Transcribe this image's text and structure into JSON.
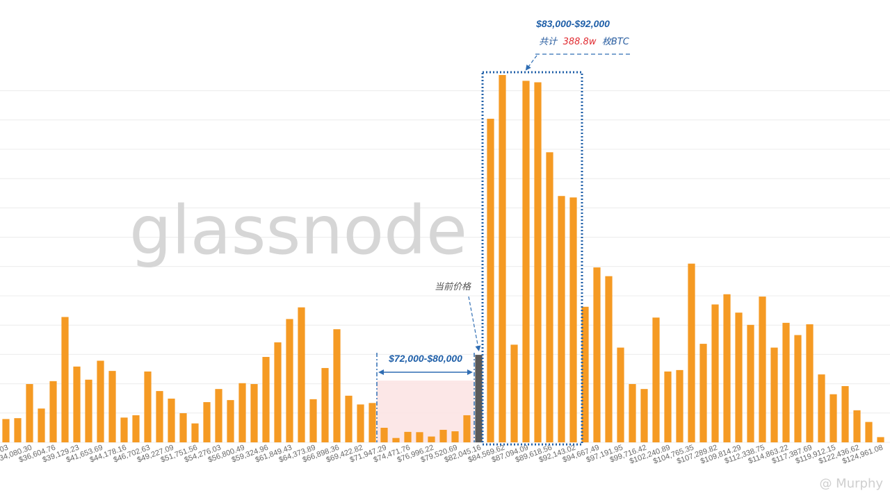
{
  "chart_data": {
    "type": "bar",
    "title": "",
    "xlabel": "",
    "ylabel": "",
    "grid": true,
    "x_tick_labels": [
      "$...03",
      "$34,080.30",
      "$36,604.76",
      "$39,129.23",
      "$41,653.69",
      "$44,178.16",
      "$46,702.63",
      "$49,227.09",
      "$51,751.56",
      "$54,276.03",
      "$56,800.49",
      "$59,324.96",
      "$61,849.43",
      "$64,373.89",
      "$66,898.36",
      "$69,422.82",
      "$71,947.29",
      "$74,471.76",
      "$76,996.22",
      "$79,520.69",
      "$82,045.16",
      "$84,569.62",
      "$87,094.09",
      "$89,618.56",
      "$92,143.02",
      "$94,667.49",
      "$97,191.95",
      "$99,716.42",
      "$102,240.89",
      "$104,765.35",
      "$107,289.82",
      "$109,814.29",
      "$112,338.75",
      "$114,863.22",
      "$117,387.69",
      "$119,912.15",
      "$122,436.62",
      "$124,961.08"
    ],
    "values": [
      8,
      8.3,
      20,
      11.6,
      21,
      43,
      26,
      21.5,
      28,
      24.5,
      8.5,
      9.3,
      24.3,
      17.6,
      15,
      10,
      6.5,
      13.8,
      18.3,
      14.5,
      20.3,
      20,
      29.3,
      34.3,
      42.3,
      46.3,
      14.8,
      25.5,
      38.8,
      16,
      13,
      13.5,
      5,
      1.5,
      3.6,
      3.5,
      2,
      4.3,
      3.8,
      9.3,
      30,
      111,
      126,
      33.5,
      124,
      123.5,
      99.5,
      84.5,
      84,
      46.5,
      60,
      57,
      32.5,
      20,
      18.3,
      42.8,
      24.3,
      24.8,
      61.3,
      33.8,
      47.3,
      50.8,
      44.5,
      40.3,
      50,
      32.5,
      41,
      36.8,
      40.5,
      23.3,
      16.5,
      19.3,
      11,
      7,
      1.8
    ],
    "ylim": [
      0,
      145
    ],
    "current_price_bar_index": 40,
    "watermark": "glassnode",
    "annotations": {
      "range_low": {
        "label": "$72,000-$80,000",
        "from_bar": 32,
        "to_bar": 39
      },
      "range_high": {
        "label": "$83,000-$92,000",
        "from_bar": 41,
        "to_bar": 48,
        "sub_prefix": "共计",
        "sub_value": "388.8w",
        "sub_suffix": "枚BTC"
      },
      "current_price": {
        "label": "当前价格"
      }
    },
    "credit": "@ Murphy",
    "colors": {
      "bar": "#f59a23",
      "current_bar": "#5a5a5a",
      "annotation_blue": "#1f5fa8",
      "annotation_red": "#e0282e",
      "range_fill": "#fce4e4"
    }
  }
}
